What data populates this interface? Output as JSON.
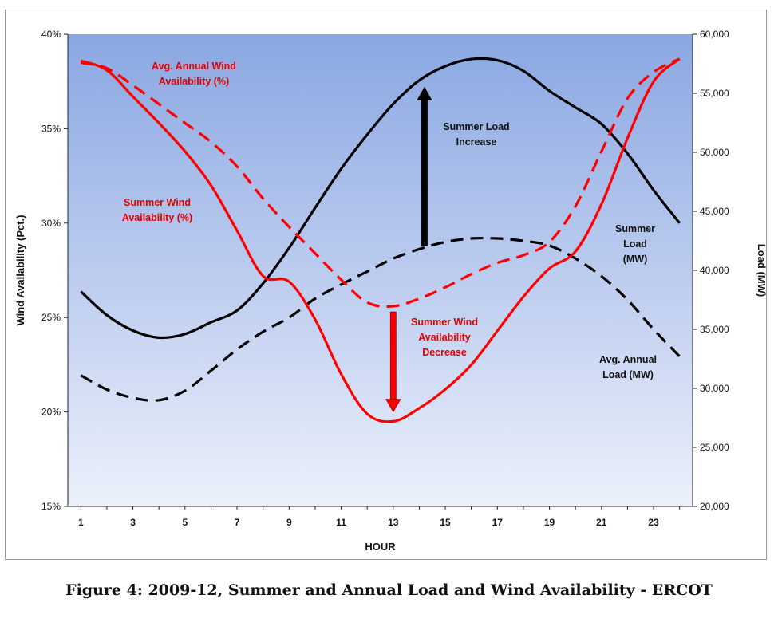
{
  "caption": "Figure 4: 2009-12, Summer and Annual Load and Wind Availability - ERCOT",
  "chart_data": {
    "type": "line",
    "title": "",
    "xlabel": "HOUR",
    "ylabel_left": "Wind Availability (Pct.)",
    "ylabel_right": "Load (MW)",
    "x": [
      1,
      2,
      3,
      4,
      5,
      6,
      7,
      8,
      9,
      10,
      11,
      12,
      13,
      14,
      15,
      16,
      17,
      18,
      19,
      20,
      21,
      22,
      23,
      24
    ],
    "x_ticks": [
      "1",
      "3",
      "5",
      "7",
      "9",
      "11",
      "13",
      "15",
      "17",
      "19",
      "21",
      "23"
    ],
    "x_tick_values": [
      1,
      3,
      5,
      7,
      9,
      11,
      13,
      15,
      17,
      19,
      21,
      23
    ],
    "xlim": [
      0.5,
      24.5
    ],
    "ylim_left": [
      15,
      40
    ],
    "ylim_right": [
      20000,
      60000
    ],
    "y_left_ticks": [
      "15%",
      "20%",
      "25%",
      "30%",
      "35%",
      "40%"
    ],
    "y_left_tick_values": [
      15,
      20,
      25,
      30,
      35,
      40
    ],
    "y_right_ticks": [
      "20,000",
      "25,000",
      "30,000",
      "35,000",
      "40,000",
      "45,000",
      "50,000",
      "55,000",
      "60,000"
    ],
    "y_right_tick_values": [
      20000,
      25000,
      30000,
      35000,
      40000,
      45000,
      50000,
      55000,
      60000
    ],
    "grid": false,
    "series": [
      {
        "name": "Summer Load (MW)",
        "axis": "right",
        "color": "#000000",
        "dash": "solid",
        "values": [
          38200,
          36200,
          34900,
          34300,
          34600,
          35600,
          36600,
          38900,
          41900,
          45300,
          48600,
          51500,
          54100,
          56100,
          57300,
          57900,
          57800,
          56900,
          55200,
          53800,
          52400,
          49900,
          46800,
          44000
        ]
      },
      {
        "name": "Avg. Annual Load (MW)",
        "axis": "right",
        "color": "#000000",
        "dash": "dashed",
        "values": [
          31100,
          29900,
          29200,
          29000,
          29800,
          31500,
          33300,
          34800,
          36000,
          37600,
          38800,
          39900,
          41000,
          41800,
          42400,
          42700,
          42700,
          42500,
          42100,
          41000,
          39500,
          37500,
          35000,
          32700
        ]
      },
      {
        "name": "Summer Wind Availability (%)",
        "axis": "left",
        "color": "#ff0000",
        "dash": "solid",
        "values": [
          38.6,
          38.1,
          36.7,
          35.3,
          33.8,
          32.0,
          29.6,
          27.2,
          26.9,
          24.9,
          22.0,
          19.9,
          19.5,
          20.2,
          21.2,
          22.5,
          24.3,
          26.1,
          27.6,
          28.5,
          31.0,
          34.5,
          37.5,
          38.7
        ]
      },
      {
        "name": "Avg. Annual Wind Availability (%)",
        "axis": "left",
        "color": "#ff0000",
        "dash": "dashed",
        "values": [
          38.5,
          38.2,
          37.3,
          36.3,
          35.3,
          34.3,
          33.0,
          31.3,
          29.8,
          28.4,
          27.0,
          25.8,
          25.6,
          26.0,
          26.6,
          27.3,
          27.9,
          28.3,
          29.0,
          30.9,
          33.8,
          36.6,
          38.0,
          38.7
        ]
      }
    ],
    "annotations": [
      {
        "text": [
          "Avg. Annual  Wind",
          "Availability (%)"
        ],
        "color": "#e00000"
      },
      {
        "text": [
          "Summer Wind",
          "Availability (%)"
        ],
        "color": "#e00000"
      },
      {
        "text": [
          "Summer Load",
          "Increase"
        ],
        "color": "#111111"
      },
      {
        "text": [
          "Summer Wind",
          "Availability",
          "Decrease"
        ],
        "color": "#e00000"
      },
      {
        "text": [
          "Summer",
          "Load",
          "(MW)"
        ],
        "color": "#111111"
      },
      {
        "text": [
          "Avg. Annual",
          "Load (MW)"
        ],
        "color": "#111111"
      }
    ],
    "arrows": [
      {
        "name": "summer-load-increase-arrow",
        "color": "#000000",
        "x": 14.2,
        "from_right": 42100,
        "to_right": 55500
      },
      {
        "name": "summer-wind-decrease-arrow",
        "color": "#ff0000",
        "x": 13.0,
        "from_left": 25.3,
        "to_left": 20.0
      }
    ]
  }
}
